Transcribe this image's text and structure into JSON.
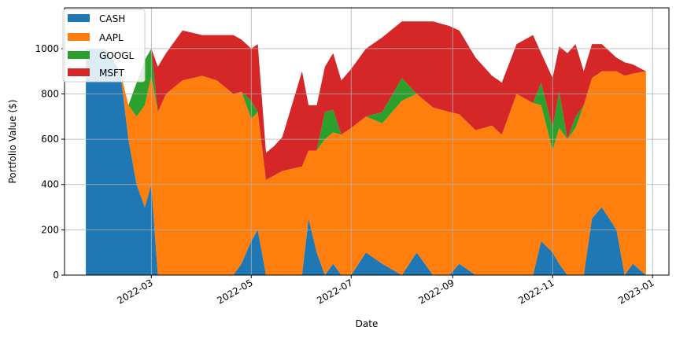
{
  "chart_data": {
    "type": "area",
    "stacked": true,
    "xlabel": "Date",
    "ylabel": "Portfolio Value ($)",
    "ylim": [
      0,
      1180
    ],
    "x_ticks": [
      "2022-03",
      "2022-05",
      "2022-07",
      "2022-09",
      "2022-11",
      "2023-01"
    ],
    "y_ticks": [
      "0",
      "200",
      "400",
      "600",
      "800",
      "1000"
    ],
    "grid": true,
    "legend_placement": "top-left",
    "x": [
      "2022-01-20",
      "2022-02-01",
      "2022-02-10",
      "2022-02-15",
      "2022-02-20",
      "2022-02-25",
      "2022-03-01",
      "2022-03-05",
      "2022-03-10",
      "2022-03-20",
      "2022-04-01",
      "2022-04-10",
      "2022-04-20",
      "2022-04-25",
      "2022-05-01",
      "2022-05-05",
      "2022-05-10",
      "2022-05-15",
      "2022-05-20",
      "2022-06-01",
      "2022-06-05",
      "2022-06-10",
      "2022-06-15",
      "2022-06-20",
      "2022-06-25",
      "2022-07-01",
      "2022-07-10",
      "2022-07-20",
      "2022-08-01",
      "2022-08-10",
      "2022-08-20",
      "2022-08-30",
      "2022-09-05",
      "2022-09-15",
      "2022-09-25",
      "2022-10-01",
      "2022-10-10",
      "2022-10-20",
      "2022-10-25",
      "2022-11-01",
      "2022-11-05",
      "2022-11-10",
      "2022-11-15",
      "2022-11-20",
      "2022-11-25",
      "2022-12-01",
      "2022-12-10",
      "2022-12-15",
      "2022-12-20",
      "2022-12-28"
    ],
    "series": [
      {
        "name": "CASH",
        "color": "#1f77b4",
        "values": [
          1000,
          1000,
          900,
          600,
          400,
          300,
          400,
          0,
          0,
          0,
          0,
          0,
          0,
          50,
          150,
          200,
          0,
          0,
          0,
          0,
          250,
          100,
          0,
          50,
          0,
          0,
          100,
          50,
          0,
          100,
          0,
          0,
          50,
          0,
          0,
          0,
          0,
          0,
          150,
          100,
          50,
          0,
          0,
          0,
          250,
          300,
          200,
          0,
          50,
          0
        ]
      },
      {
        "name": "AAPL",
        "color": "#ff7f0e",
        "values": [
          0,
          0,
          0,
          150,
          300,
          450,
          480,
          720,
          800,
          860,
          880,
          860,
          800,
          760,
          540,
          520,
          420,
          440,
          460,
          480,
          300,
          450,
          600,
          580,
          620,
          650,
          600,
          620,
          770,
          700,
          740,
          720,
          660,
          640,
          660,
          620,
          800,
          760,
          600,
          450,
          600,
          600,
          650,
          750,
          620,
          600,
          700,
          880,
          840,
          900
        ]
      },
      {
        "name": "GOOGL",
        "color": "#2ca02c",
        "values": [
          0,
          0,
          0,
          0,
          150,
          200,
          120,
          0,
          0,
          0,
          0,
          0,
          0,
          0,
          80,
          0,
          0,
          0,
          0,
          0,
          0,
          0,
          120,
          100,
          0,
          0,
          0,
          50,
          100,
          0,
          0,
          0,
          0,
          0,
          0,
          0,
          0,
          0,
          100,
          100,
          160,
          0,
          50,
          0,
          0,
          0,
          0,
          0,
          0,
          0
        ]
      },
      {
        "name": "MSFT",
        "color": "#d62728",
        "values": [
          0,
          0,
          0,
          0,
          0,
          0,
          0,
          200,
          180,
          220,
          180,
          200,
          260,
          230,
          230,
          300,
          120,
          130,
          150,
          420,
          200,
          200,
          200,
          250,
          240,
          260,
          300,
          330,
          250,
          320,
          380,
          380,
          370,
          320,
          220,
          230,
          220,
          300,
          130,
          220,
          200,
          380,
          320,
          150,
          150,
          120,
          60,
          60,
          40,
          0
        ]
      }
    ]
  }
}
